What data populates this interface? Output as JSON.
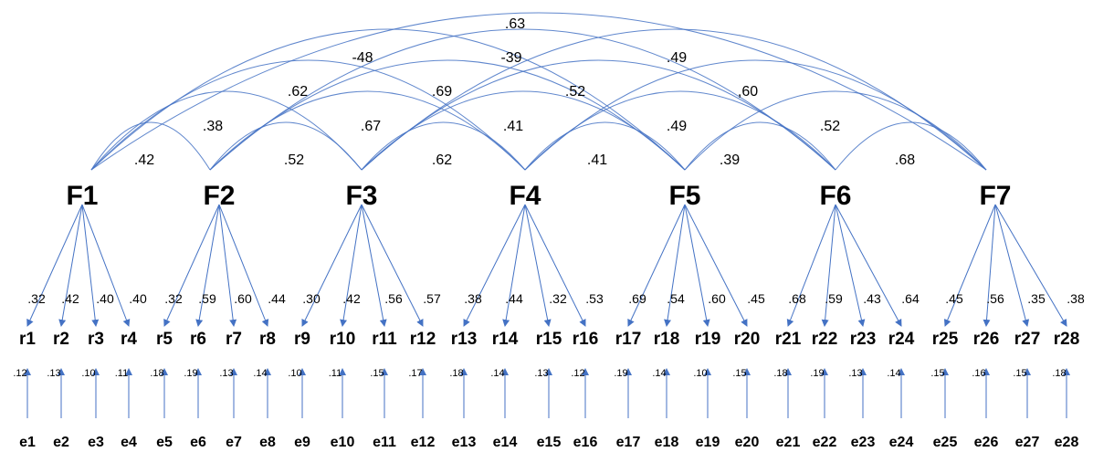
{
  "factors": [
    "F1",
    "F2",
    "F3",
    "F4",
    "F5",
    "F6",
    "F7"
  ],
  "items": [
    "r1",
    "r2",
    "r3",
    "r4",
    "r5",
    "r6",
    "r7",
    "r8",
    "r9",
    "r10",
    "r11",
    "r12",
    "r13",
    "r14",
    "r15",
    "r16",
    "r17",
    "r18",
    "r19",
    "r20",
    "r21",
    "r22",
    "r23",
    "r24",
    "r25",
    "r26",
    "r27",
    "r28"
  ],
  "errors": [
    "e1",
    "e2",
    "e3",
    "e4",
    "e5",
    "e6",
    "e7",
    "e8",
    "e9",
    "e10",
    "e11",
    "e12",
    "e13",
    "e14",
    "e15",
    "e16",
    "e17",
    "e18",
    "e19",
    "e20",
    "e21",
    "e22",
    "e23",
    "e24",
    "e25",
    "e26",
    "e27",
    "e28"
  ],
  "loadings": [
    ".32",
    ".42",
    ".40",
    ".40",
    ".32",
    ".59",
    ".60",
    ".44",
    ".30",
    ".42",
    ".56",
    ".57",
    ".38",
    ".44",
    ".32",
    ".53",
    ".69",
    ".54",
    ".60",
    ".45",
    ".68",
    ".59",
    ".43",
    ".64",
    ".45",
    ".56",
    ".35",
    ".38"
  ],
  "residuals": [
    ".12",
    ".13",
    ".10",
    ".11",
    ".18",
    ".19",
    ".13",
    ".14",
    ".10",
    ".11",
    ".15",
    ".17",
    ".18",
    ".14",
    ".13",
    ".12",
    ".19",
    ".14",
    ".10",
    ".15",
    ".18",
    ".19",
    ".13",
    ".14",
    ".15",
    ".16",
    ".15",
    ".18"
  ],
  "correlations": [
    {
      "from": "F1",
      "to": "F2",
      "label": ".42"
    },
    {
      "from": "F2",
      "to": "F3",
      "label": ".52"
    },
    {
      "from": "F3",
      "to": "F4",
      "label": ".62"
    },
    {
      "from": "F4",
      "to": "F5",
      "label": ".41"
    },
    {
      "from": "F5",
      "to": "F6",
      "label": ".39"
    },
    {
      "from": "F6",
      "to": "F7",
      "label": ".68"
    },
    {
      "from": "F1",
      "to": "F3",
      "label": ".38"
    },
    {
      "from": "F2",
      "to": "F4",
      "label": ".67"
    },
    {
      "from": "F3",
      "to": "F5",
      "label": ".41"
    },
    {
      "from": "F4",
      "to": "F6",
      "label": ".49"
    },
    {
      "from": "F5",
      "to": "F7",
      "label": ".52"
    },
    {
      "from": "F1",
      "to": "F4",
      "label": ".62"
    },
    {
      "from": "F2",
      "to": "F5",
      "label": ".69"
    },
    {
      "from": "F3",
      "to": "F6",
      "label": ".52"
    },
    {
      "from": "F4",
      "to": "F7",
      "label": ",60"
    },
    {
      "from": "F1",
      "to": "F5",
      "label": "-48"
    },
    {
      "from": "F2",
      "to": "F6",
      "label": "-39"
    },
    {
      "from": "F3",
      "to": "F7",
      "label": ".49"
    },
    {
      "from": "F1",
      "to": "F7",
      "label": ".63"
    }
  ],
  "colors": {
    "line": "#4472C4",
    "text": "#000000"
  }
}
